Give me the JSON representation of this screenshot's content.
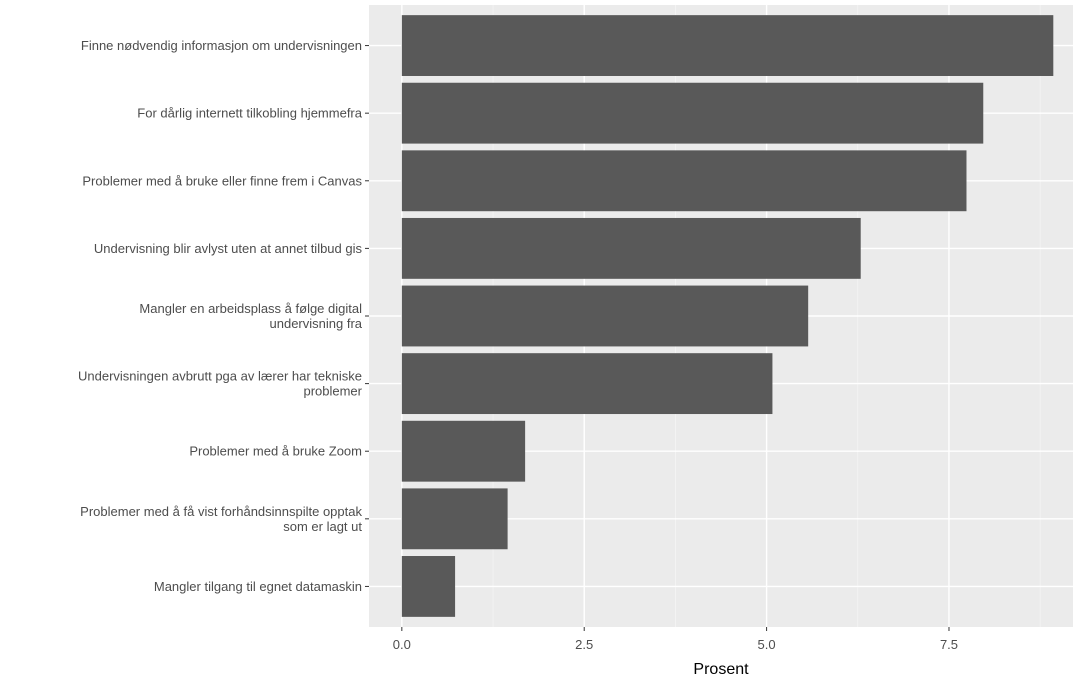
{
  "chart_data": {
    "type": "bar",
    "orientation": "horizontal",
    "categories": [
      "Finne nødvendig informasjon om undervisningen",
      "For dårlig internett tilkobling hjemmefra",
      "Problemer med å bruke eller finne frem i Canvas",
      "Undervisning blir avlyst uten at annet tilbud gis",
      "Mangler en arbeidsplass å følge digital\nundervisning fra",
      "Undervisningen avbrutt pga av lærer har tekniske\nproblemer",
      "Problemer med å bruke Zoom",
      "Problemer med å få vist forhåndsinnspilte opptak\nsom er lagt ut",
      "Mangler tilgang til egnet datamaskin"
    ],
    "values": [
      8.93,
      7.97,
      7.74,
      6.29,
      5.57,
      5.08,
      1.69,
      1.45,
      0.73
    ],
    "xlabel": "Prosent",
    "ylabel": "",
    "xlim": [
      -0.45,
      9.2
    ],
    "x_ticks": [
      0,
      2.5,
      5,
      7.5
    ],
    "x_tick_labels": [
      "0.0",
      "2.5",
      "5.0",
      "7.5"
    ],
    "grid": true,
    "colors": {
      "bar": "#595959",
      "panel": "#ebebeb",
      "grid_major": "#ffffff",
      "grid_minor": "#f5f5f5"
    }
  }
}
